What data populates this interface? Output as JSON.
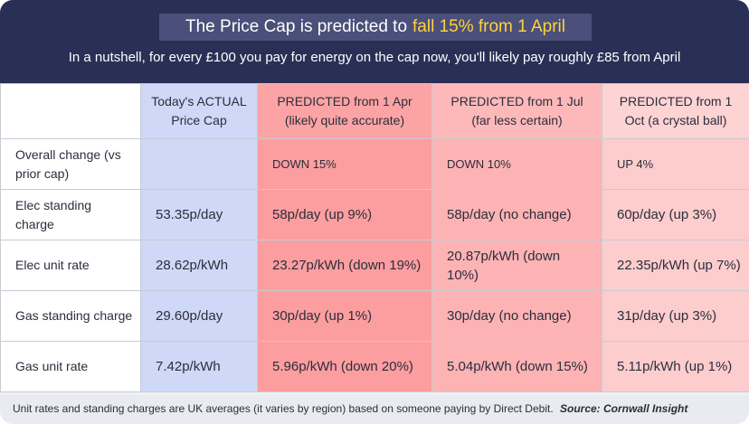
{
  "header": {
    "title_main": "The Price Cap is predicted to",
    "title_highlight": "fall 15% from 1 April",
    "subtitle": "In a nutshell, for every £100 you pay for energy on the cap now, you'll likely pay roughly £85 from April"
  },
  "table": {
    "columns": [
      "",
      "Today's ACTUAL Price Cap",
      "PREDICTED from 1 Apr (likely quite accurate)",
      "PREDICTED from 1 Jul (far less certain)",
      "PREDICTED from 1 Oct (a crystal ball)"
    ],
    "rows": [
      {
        "label": "Overall change (vs prior cap)",
        "today": "",
        "apr": "DOWN 15%",
        "jul": "DOWN 10%",
        "oct": "UP 4%"
      },
      {
        "label": "Elec standing charge",
        "today": "53.35p/day",
        "apr": "58p/day (up 9%)",
        "jul": "58p/day (no change)",
        "oct": "60p/day (up 3%)"
      },
      {
        "label": "Elec unit rate",
        "today": "28.62p/kWh",
        "apr": "23.27p/kWh (down 19%)",
        "jul": "20.87p/kWh (down 10%)",
        "oct": "22.35p/kWh (up 7%)"
      },
      {
        "label": "Gas standing charge",
        "today": "29.60p/day",
        "apr": "30p/day (up 1%)",
        "jul": "30p/day (no change)",
        "oct": "31p/day (up 3%)"
      },
      {
        "label": "Gas unit rate",
        "today": "7.42p/kWh",
        "apr": "5.96p/kWh (down 20%)",
        "jul": "5.04p/kWh (down 15%)",
        "oct": "5.11p/kWh (up 1%)"
      }
    ]
  },
  "footer": {
    "note": "Unit rates and standing charges are UK averages (it varies by region) based on someone paying by Direct Debit.",
    "source": "Source: Cornwall Insight"
  },
  "colors": {
    "header_bg": "#2a2f56",
    "title_box_bg": "#4a5079",
    "title_highlight": "#ffd23f",
    "today_column": "#cfd8f6",
    "apr_column": "#fc9e9f",
    "jul_column": "#fdb3b4",
    "oct_column": "#fdcdcd"
  }
}
